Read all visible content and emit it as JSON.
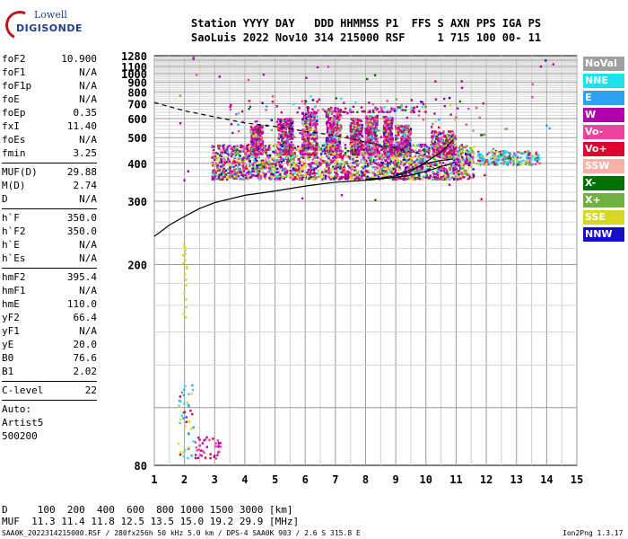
{
  "logo": {
    "line1": "Lowell",
    "line2": "DIGISONDE"
  },
  "header": {
    "line1": "Station YYYY DAY   DDD HHMMSS P1  FFS S AXN PPS IGA PS",
    "line2": "SaoLuis 2022 Nov10 314 215000 RSF     1 715 100 00- 11"
  },
  "params": {
    "group1": [
      {
        "label": "foF2",
        "value": "10.900"
      },
      {
        "label": "foF1",
        "value": "N/A"
      },
      {
        "label": "foF1p",
        "value": "N/A"
      },
      {
        "label": "foE",
        "value": "N/A"
      },
      {
        "label": "foEp",
        "value": "0.35"
      },
      {
        "label": "fxI",
        "value": "11.40"
      },
      {
        "label": "foEs",
        "value": "N/A"
      },
      {
        "label": "fmin",
        "value": "3.25"
      }
    ],
    "group2": [
      {
        "label": "MUF(D)",
        "value": "29.88"
      },
      {
        "label": "M(D)",
        "value": "2.74"
      },
      {
        "label": "D",
        "value": "N/A"
      }
    ],
    "group3": [
      {
        "label": "h`F",
        "value": "350.0"
      },
      {
        "label": "h`F2",
        "value": "350.0"
      },
      {
        "label": "h`E",
        "value": "N/A"
      },
      {
        "label": "h`Es",
        "value": "N/A"
      }
    ],
    "group4": [
      {
        "label": "hmF2",
        "value": "395.4"
      },
      {
        "label": "hmF1",
        "value": "N/A"
      },
      {
        "label": "hmE",
        "value": "110.0"
      },
      {
        "label": "yF2",
        "value": "66.4"
      },
      {
        "label": "yF1",
        "value": "N/A"
      },
      {
        "label": "yE",
        "value": "20.0"
      },
      {
        "label": "B0",
        "value": "76.6"
      },
      {
        "label": "B1",
        "value": "2.02"
      }
    ],
    "group5": [
      {
        "label": "C-level",
        "value": "22"
      }
    ],
    "auto_lines": [
      "Auto:",
      "Artist5",
      "500200"
    ]
  },
  "legend": [
    {
      "label": "NoVal",
      "color": "#a0a0a0"
    },
    {
      "label": "NNE",
      "color": "#20e0f0"
    },
    {
      "label": "E",
      "color": "#30a0f0"
    },
    {
      "label": "W",
      "color": "#b000b0"
    },
    {
      "label": "Vo-",
      "color": "#f040a0"
    },
    {
      "label": "Vo+",
      "color": "#e00030"
    },
    {
      "label": "SSW",
      "color": "#f8b0a8"
    },
    {
      "label": "X-",
      "color": "#007000"
    },
    {
      "label": "X+",
      "color": "#70b040"
    },
    {
      "label": "SSE",
      "color": "#d8d820"
    },
    {
      "label": "NNW",
      "color": "#1810c0"
    }
  ],
  "footer": {
    "line1": "D     100  200  400  600  800 1000 1500 3000 [km]",
    "line2": "MUF  11.3 11.4 11.8 12.5 13.5 15.0 19.2 29.9 [MHz]",
    "file": "SAA0K_2022314215000.RSF / 280fx256h 50 kHz 5.0 km / DPS-4 SAA0K 903 / 2.6 S 315.8 E",
    "version": "Ion2Png 1.3.17"
  },
  "chart_data": {
    "type": "scatter",
    "title": "",
    "xlabel": "",
    "ylabel": "",
    "xlim": [
      1,
      15
    ],
    "ylim": [
      80,
      1280
    ],
    "x_ticks": [
      1,
      2,
      3,
      4,
      5,
      6,
      7,
      8,
      9,
      10,
      11,
      12,
      13,
      14,
      15
    ],
    "y_ticks": [
      80,
      200,
      300,
      400,
      500,
      600,
      700,
      800,
      900,
      1000,
      1100,
      1280
    ],
    "y_scale": "reciprocal-sqrt",
    "grid": true,
    "trace_regions": [
      {
        "freq": [
          2.9,
          11.6
        ],
        "height": [
          355,
          480
        ],
        "description": "dense F-layer echo band"
      },
      {
        "freq": [
          4.1,
          9.5
        ],
        "height": [
          460,
          650
        ],
        "description": "spread F echoes"
      },
      {
        "freq": [
          11.8,
          13.8
        ],
        "height": [
          390,
          450
        ],
        "description": "extraordinary trace tail"
      },
      {
        "freq": [
          1.7,
          2.4
        ],
        "height": [
          80,
          250
        ],
        "description": "low-frequency E echoes"
      }
    ],
    "curves": [
      {
        "name": "profile",
        "style": "solid",
        "x": [
          1.0,
          1.5,
          2.0,
          2.5,
          3.0,
          4.0,
          5.0,
          6.0,
          7.0,
          8.0,
          9.0,
          9.5,
          10.0,
          10.5,
          10.9
        ],
        "y": [
          237,
          255,
          270,
          285,
          297,
          313,
          323,
          335,
          345,
          350,
          358,
          364,
          375,
          390,
          400
        ]
      },
      {
        "name": "profile-upper",
        "style": "solid",
        "x": [
          8.0,
          8.5,
          9.0,
          9.5,
          10.0,
          10.5,
          10.9
        ],
        "y": [
          353,
          356,
          362,
          375,
          405,
          440,
          490
        ]
      },
      {
        "name": "profile-upper2",
        "style": "solid",
        "x": [
          9.0,
          9.5,
          10.0,
          10.5,
          10.9
        ],
        "y": [
          365,
          380,
          400,
          410,
          415
        ]
      },
      {
        "name": "muf",
        "style": "dashed",
        "x": [
          1.0,
          2.0,
          3.0,
          4.0,
          5.0,
          6.0,
          7.0,
          8.0,
          9.0,
          9.5,
          10.0
        ],
        "y": [
          710,
          650,
          610,
          575,
          555,
          530,
          510,
          480,
          455,
          440,
          430
        ]
      }
    ]
  }
}
